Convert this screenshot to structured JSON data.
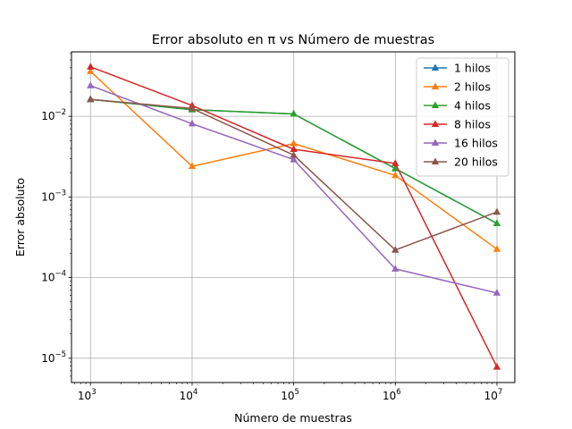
{
  "chart_data": {
    "type": "line",
    "title": "Error absoluto en π vs Número de muestras",
    "xlabel": "Número de muestras",
    "ylabel": "Error absoluto",
    "xscale": "log",
    "yscale": "log",
    "xlim": [
      650,
      15000000
    ],
    "ylim": [
      5e-06,
      0.063
    ],
    "grid": true,
    "legend_position": "top-right",
    "x": [
      1000,
      10000,
      100000,
      1000000,
      10000000
    ],
    "x_ticks": [
      {
        "mantissa": "10",
        "exp": "3",
        "value": 1000
      },
      {
        "mantissa": "10",
        "exp": "4",
        "value": 10000
      },
      {
        "mantissa": "10",
        "exp": "5",
        "value": 100000
      },
      {
        "mantissa": "10",
        "exp": "6",
        "value": 1000000
      },
      {
        "mantissa": "10",
        "exp": "7",
        "value": 10000000
      }
    ],
    "y_ticks": [
      {
        "mantissa": "10",
        "exp": "−5",
        "value": 1e-05
      },
      {
        "mantissa": "10",
        "exp": "−4",
        "value": 0.0001
      },
      {
        "mantissa": "10",
        "exp": "−3",
        "value": 0.001
      },
      {
        "mantissa": "10",
        "exp": "−2",
        "value": 0.01
      }
    ],
    "series": [
      {
        "name": "1 hilos",
        "color": "#1f77b4",
        "values": [
          0.0162,
          0.0121,
          0.0107,
          0.00225,
          0.00047
        ]
      },
      {
        "name": "2 hilos",
        "color": "#ff7f0e",
        "values": [
          0.036,
          0.0024,
          0.0046,
          0.00185,
          0.000225
        ]
      },
      {
        "name": "4 hilos",
        "color": "#2ca02c",
        "values": [
          0.0162,
          0.0121,
          0.0107,
          0.00225,
          0.00047
        ]
      },
      {
        "name": "8 hilos",
        "color": "#d62728",
        "values": [
          0.041,
          0.0136,
          0.0039,
          0.0026,
          7.8e-06
        ]
      },
      {
        "name": "16 hilos",
        "color": "#9467bd",
        "values": [
          0.024,
          0.0081,
          0.0029,
          0.000128,
          6.45e-05
        ]
      },
      {
        "name": "20 hilos",
        "color": "#8c564b",
        "values": [
          0.0162,
          0.0125,
          0.0033,
          0.00022,
          0.00065
        ]
      }
    ]
  }
}
